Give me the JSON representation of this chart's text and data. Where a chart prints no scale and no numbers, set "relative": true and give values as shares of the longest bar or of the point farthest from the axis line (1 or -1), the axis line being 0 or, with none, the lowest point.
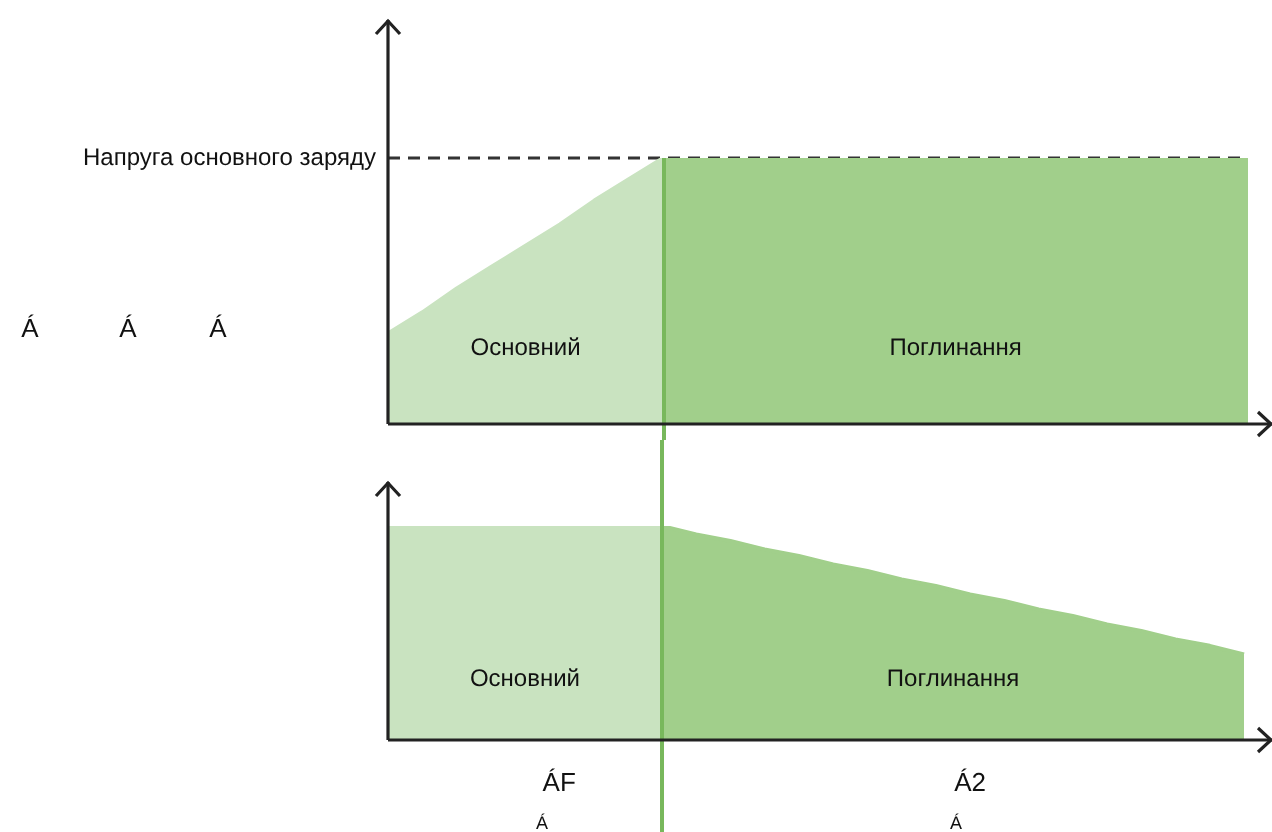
{
  "chart_data": [
    {
      "type": "area",
      "relative": true,
      "categories": [
        null,
        null,
        null,
        null,
        null,
        null,
        null,
        null,
        null,
        null,
        null,
        null,
        null,
        null,
        null,
        null,
        null,
        null,
        null,
        null,
        null,
        null,
        null,
        null,
        null,
        null
      ],
      "series": [
        {
          "name": "Основний",
          "color": "#c9e3c0",
          "values": [
            0.34,
            0.42,
            0.51,
            0.59,
            0.67,
            0.75,
            0.84,
            0.92,
            1,
            null,
            null,
            null,
            null,
            null,
            null,
            null,
            null,
            null,
            null,
            null,
            null,
            null,
            null,
            null,
            null,
            null
          ]
        },
        {
          "name": "Поглинання",
          "color": "#a1cf8b",
          "values": [
            null,
            null,
            null,
            null,
            null,
            null,
            null,
            null,
            1,
            1,
            1,
            1,
            1,
            1,
            1,
            1,
            1,
            1,
            1,
            1,
            1,
            1,
            1,
            1,
            1,
            1
          ]
        }
      ],
      "tick_labels": false,
      "ref_lines": [
        {
          "axis": "y",
          "value": 1,
          "label": "Напруга основного заряду",
          "color": "#333333",
          "line_style": "dashed"
        }
      ],
      "annotations": [
        "Á",
        "Á",
        "Á"
      ]
    },
    {
      "type": "area",
      "relative": true,
      "categories": [
        null,
        null,
        null,
        null,
        null,
        "ÁF",
        null,
        null,
        null,
        null,
        null,
        null,
        null,
        null,
        null,
        null,
        null,
        "Á2",
        null,
        null,
        null,
        null,
        null,
        null,
        null,
        null
      ],
      "series": [
        {
          "name": "Основний",
          "color": "#c9e3c0",
          "values": [
            1,
            1,
            1,
            1,
            1,
            1,
            1,
            1,
            1,
            null,
            null,
            null,
            null,
            null,
            null,
            null,
            null,
            null,
            null,
            null,
            null,
            null,
            null,
            null,
            null,
            null
          ]
        },
        {
          "name": "Поглинання",
          "color": "#a1cf8b",
          "values": [
            null,
            null,
            null,
            null,
            null,
            null,
            null,
            null,
            1,
            0.96,
            0.93,
            0.89,
            0.86,
            0.82,
            0.79,
            0.75,
            0.72,
            0.68,
            0.65,
            0.61,
            0.58,
            0.54,
            0.51,
            0.47,
            0.44,
            0.4
          ]
        }
      ],
      "tick_labels": "x",
      "annotations": [
        "Á",
        "Á"
      ]
    }
  ]
}
